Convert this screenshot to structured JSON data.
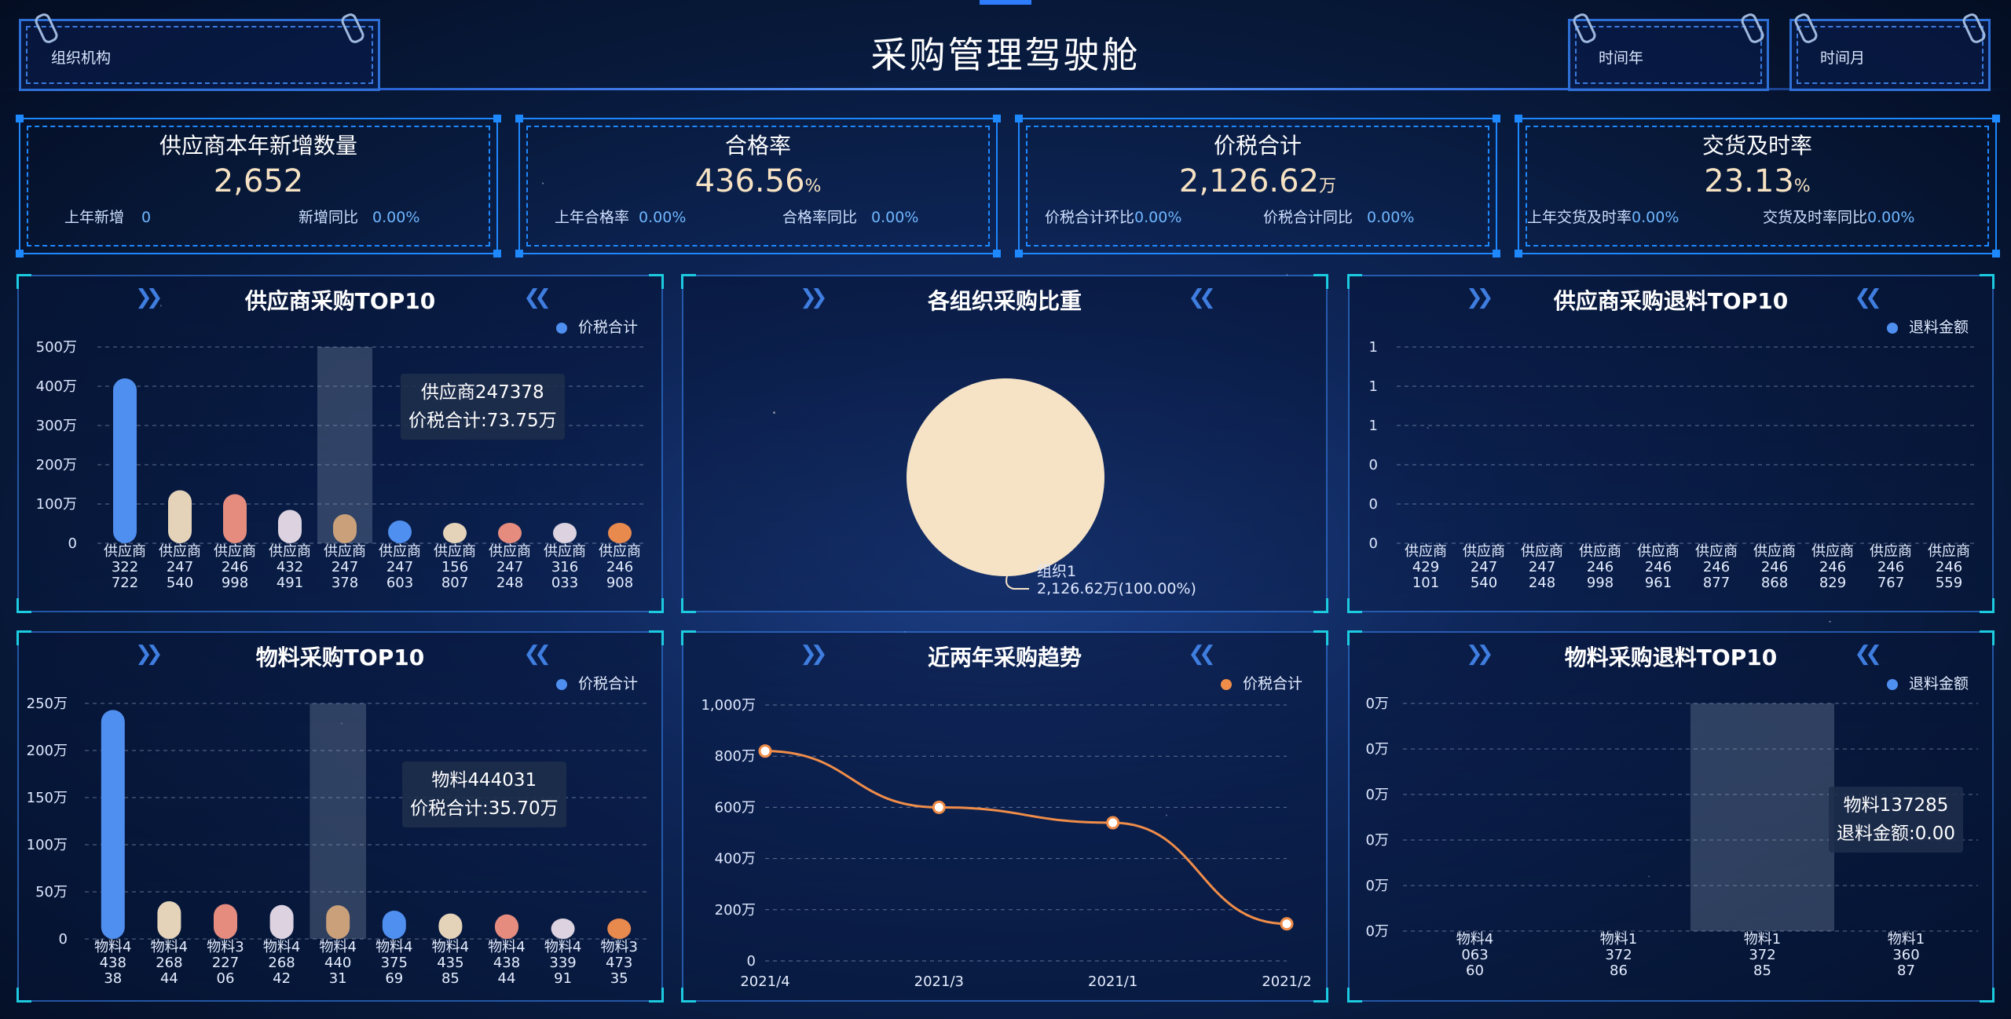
{
  "header": {
    "title": "采购管理驾驶舱",
    "org_label": "组织机构",
    "year_label": "时间年",
    "month_label": "时间月"
  },
  "kpis": [
    {
      "title": "供应商本年新增数量",
      "value": "2,652",
      "unit": "",
      "sub1_label": "上年新增",
      "sub1_value": "0",
      "sub2_label": "新增同比",
      "sub2_value": "0.00%"
    },
    {
      "title": "合格率",
      "value": "436.56",
      "unit": "%",
      "sub1_label": "上年合格率",
      "sub1_value": "0.00%",
      "sub2_label": "合格率同比",
      "sub2_value": "0.00%"
    },
    {
      "title": "价税合计",
      "value": "2,126.62",
      "unit": "万",
      "sub1_label": "价税合计环比",
      "sub1_value": "0.00%",
      "sub2_label": "价税合计同比",
      "sub2_value": "0.00%"
    },
    {
      "title": "交货及时率",
      "value": "23.13",
      "unit": "%",
      "sub1_label": "上年交货及时率",
      "sub1_value": "0.00%",
      "sub2_label": "交货及时率同比",
      "sub2_value": "0.00%"
    }
  ],
  "panels": {
    "supplier_top10": {
      "title": "供应商采购TOP10",
      "legend": "价税合计",
      "legend_color": "#4f8ff0",
      "tooltip_line1": "供应商247378",
      "tooltip_line2": "价税合计:73.75万"
    },
    "org_share": {
      "title": "各组织采购比重",
      "slice_label_1": "组织1",
      "slice_label_2": "2,126.62万(100.00%)"
    },
    "supplier_return_top10": {
      "title": "供应商采购退料TOP10",
      "legend": "退料金额",
      "legend_color": "#4f8ff0"
    },
    "material_top10": {
      "title": "物料采购TOP10",
      "legend": "价税合计",
      "legend_color": "#4f8ff0",
      "tooltip_line1": "物料444031",
      "tooltip_line2": "价税合计:35.70万"
    },
    "trend": {
      "title": "近两年采购趋势",
      "legend": "价税合计",
      "legend_color": "#f08d49"
    },
    "material_return_top10": {
      "title": "物料采购退料TOP10",
      "legend": "退料金额",
      "legend_color": "#4f8ff0",
      "tooltip_line1": "物料137285",
      "tooltip_line2": "退料金额:0.00"
    }
  },
  "chart_data": [
    {
      "id": "supplier_top10",
      "type": "bar",
      "title": "供应商采购TOP10",
      "ylim": [
        0,
        500
      ],
      "yticks": [
        "0",
        "100万",
        "200万",
        "300万",
        "400万",
        "500万"
      ],
      "categories": [
        [
          "供应商",
          "322",
          "722"
        ],
        [
          "供应商",
          "247",
          "540"
        ],
        [
          "供应商",
          "246",
          "998"
        ],
        [
          "供应商",
          "432",
          "491"
        ],
        [
          "供应商",
          "247",
          "378"
        ],
        [
          "供应商",
          "247",
          "603"
        ],
        [
          "供应商",
          "156",
          "807"
        ],
        [
          "供应商",
          "247",
          "248"
        ],
        [
          "供应商",
          "316",
          "033"
        ],
        [
          "供应商",
          "246",
          "908"
        ]
      ],
      "series": [
        {
          "name": "价税合计",
          "values": [
            420,
            135,
            125,
            85,
            74,
            58,
            50,
            47,
            42,
            40
          ]
        }
      ],
      "colors": [
        "#4f8ff0",
        "#e4d3b9",
        "#e58c7f",
        "#dcd2e0",
        "#caa07a",
        "#4f8ff0",
        "#e4d3b9",
        "#e58c7f",
        "#dcd2e0",
        "#e8894e"
      ],
      "highlight_index": 4
    },
    {
      "id": "org_share",
      "type": "pie",
      "title": "各组织采购比重",
      "slices": [
        {
          "name": "组织1",
          "value": 2126.62,
          "percent": 100.0,
          "color": "#f6e3c6"
        }
      ]
    },
    {
      "id": "supplier_return_top10",
      "type": "bar",
      "title": "供应商采购退料TOP10",
      "yticks": [
        "0",
        "0",
        "0",
        "1",
        "1",
        "1"
      ],
      "categories": [
        [
          "供应商",
          "429",
          "101"
        ],
        [
          "供应商",
          "247",
          "540"
        ],
        [
          "供应商",
          "247",
          "248"
        ],
        [
          "供应商",
          "246",
          "998"
        ],
        [
          "供应商",
          "246",
          "961"
        ],
        [
          "供应商",
          "246",
          "877"
        ],
        [
          "供应商",
          "246",
          "868"
        ],
        [
          "供应商",
          "246",
          "829"
        ],
        [
          "供应商",
          "246",
          "767"
        ],
        [
          "供应商",
          "246",
          "559"
        ]
      ],
      "series": [
        {
          "name": "退料金额",
          "values": [
            0,
            0,
            0,
            0,
            0,
            0,
            0,
            0,
            0,
            0
          ]
        }
      ]
    },
    {
      "id": "material_top10",
      "type": "bar",
      "title": "物料采购TOP10",
      "ylim": [
        0,
        250
      ],
      "yticks": [
        "0",
        "50万",
        "100万",
        "150万",
        "200万",
        "250万"
      ],
      "categories": [
        [
          "物料4",
          "438",
          "38"
        ],
        [
          "物料4",
          "268",
          "44"
        ],
        [
          "物料3",
          "227",
          "06"
        ],
        [
          "物料4",
          "268",
          "42"
        ],
        [
          "物料4",
          "440",
          "31"
        ],
        [
          "物料4",
          "375",
          "69"
        ],
        [
          "物料4",
          "435",
          "85"
        ],
        [
          "物料4",
          "438",
          "44"
        ],
        [
          "物料4",
          "339",
          "91"
        ],
        [
          "物料3",
          "473",
          "35"
        ]
      ],
      "series": [
        {
          "name": "价税合计",
          "values": [
            243,
            40,
            37,
            36,
            35.7,
            30,
            27,
            26,
            20,
            18
          ]
        }
      ],
      "colors": [
        "#4f8ff0",
        "#e4d3b9",
        "#e58c7f",
        "#dcd2e0",
        "#caa07a",
        "#4f8ff0",
        "#e4d3b9",
        "#e58c7f",
        "#dcd2e0",
        "#e8894e"
      ],
      "highlight_index": 4
    },
    {
      "id": "trend",
      "type": "line",
      "title": "近两年采购趋势",
      "ylim": [
        0,
        1000
      ],
      "yticks": [
        "0",
        "200万",
        "400万",
        "600万",
        "800万",
        "1,000万"
      ],
      "x": [
        "2021/4",
        "2021/3",
        "2021/1",
        "2021/2"
      ],
      "series": [
        {
          "name": "价税合计",
          "values": [
            820,
            600,
            540,
            145
          ]
        }
      ]
    },
    {
      "id": "material_return_top10",
      "type": "bar",
      "title": "物料采购退料TOP10",
      "yticks": [
        "0万",
        "0万",
        "0万",
        "0万",
        "0万",
        "0万"
      ],
      "categories": [
        [
          "物料4",
          "063",
          "60"
        ],
        [
          "物料1",
          "372",
          "86"
        ],
        [
          "物料1",
          "372",
          "85"
        ],
        [
          "物料1",
          "360",
          "87"
        ]
      ],
      "series": [
        {
          "name": "退料金额",
          "values": [
            0,
            0,
            0,
            0
          ]
        }
      ],
      "highlight_index": 2
    }
  ]
}
